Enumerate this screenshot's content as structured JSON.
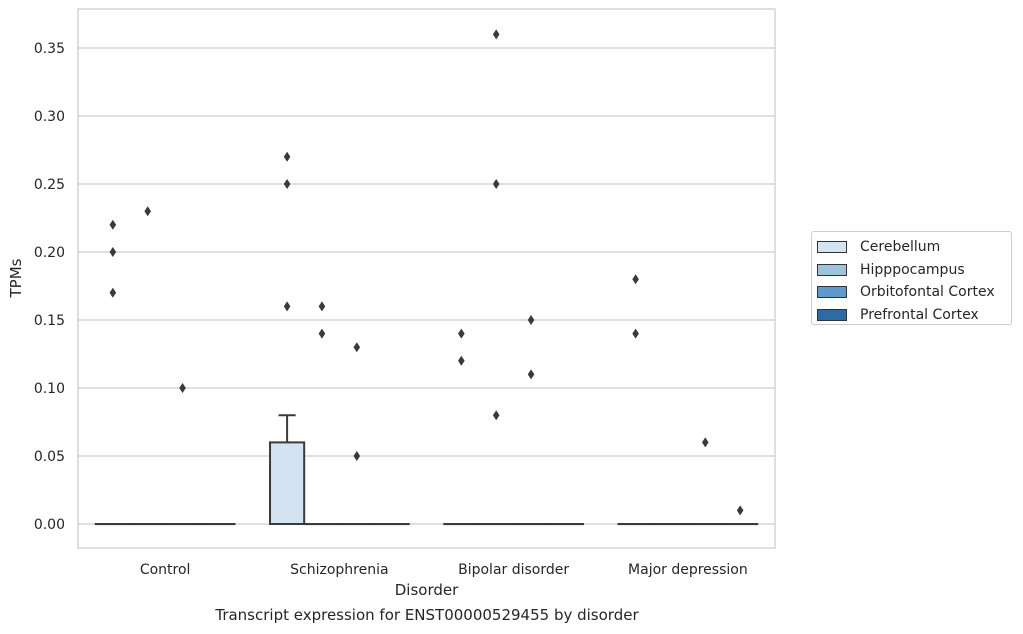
{
  "chart_data": {
    "type": "box",
    "xlabel": "Disorder",
    "ylabel": "TPMs",
    "ylim": [
      -0.018,
      0.378
    ],
    "yticks": [
      0.0,
      0.05,
      0.1,
      0.15,
      0.2,
      0.25,
      0.3,
      0.35
    ],
    "ytick_labels": [
      "0.00",
      "0.05",
      "0.10",
      "0.15",
      "0.20",
      "0.25",
      "0.30",
      "0.35"
    ],
    "grid": "horizontal",
    "legend_position": "right",
    "categories": [
      "Control",
      "Schizophrenia",
      "Bipolar disorder",
      "Major depression"
    ],
    "series": [
      {
        "name": "Cerebellum",
        "color": "#d3e3f2",
        "boxes": [
          {
            "q1": 0,
            "median": 0,
            "q3": 0,
            "whisker_low": 0,
            "whisker_high": 0,
            "outliers": [
              0.22,
              0.2,
              0.17
            ]
          },
          {
            "q1": 0,
            "median": 0,
            "q3": 0.06,
            "whisker_low": 0,
            "whisker_high": 0.08,
            "outliers": [
              0.27,
              0.25,
              0.16
            ]
          },
          {
            "q1": 0,
            "median": 0,
            "q3": 0,
            "whisker_low": 0,
            "whisker_high": 0,
            "outliers": [
              0.14,
              0.12
            ]
          },
          {
            "q1": 0,
            "median": 0,
            "q3": 0,
            "whisker_low": 0,
            "whisker_high": 0,
            "outliers": [
              0.18,
              0.14
            ]
          }
        ]
      },
      {
        "name": "Hipppocampus",
        "color": "#9cc4de",
        "boxes": [
          {
            "q1": 0,
            "median": 0,
            "q3": 0,
            "whisker_low": 0,
            "whisker_high": 0,
            "outliers": [
              0.23
            ]
          },
          {
            "q1": 0,
            "median": 0,
            "q3": 0,
            "whisker_low": 0,
            "whisker_high": 0,
            "outliers": [
              0.16,
              0.14
            ]
          },
          {
            "q1": 0,
            "median": 0,
            "q3": 0,
            "whisker_low": 0,
            "whisker_high": 0,
            "outliers": [
              0.36,
              0.25,
              0.08
            ]
          },
          {
            "q1": 0,
            "median": 0,
            "q3": 0,
            "whisker_low": 0,
            "whisker_high": 0,
            "outliers": []
          }
        ]
      },
      {
        "name": "Orbitofontal Cortex",
        "color": "#5a9bcb",
        "boxes": [
          {
            "q1": 0,
            "median": 0,
            "q3": 0,
            "whisker_low": 0,
            "whisker_high": 0,
            "outliers": [
              0.1
            ]
          },
          {
            "q1": 0,
            "median": 0,
            "q3": 0,
            "whisker_low": 0,
            "whisker_high": 0,
            "outliers": [
              0.13,
              0.05
            ]
          },
          {
            "q1": 0,
            "median": 0,
            "q3": 0,
            "whisker_low": 0,
            "whisker_high": 0,
            "outliers": [
              0.15,
              0.11
            ]
          },
          {
            "q1": 0,
            "median": 0,
            "q3": 0,
            "whisker_low": 0,
            "whisker_high": 0,
            "outliers": [
              0.06
            ]
          }
        ]
      },
      {
        "name": "Prefrontal Cortex",
        "color": "#2b6ca8",
        "boxes": [
          {
            "q1": 0,
            "median": 0,
            "q3": 0,
            "whisker_low": 0,
            "whisker_high": 0,
            "outliers": []
          },
          {
            "q1": 0,
            "median": 0,
            "q3": 0,
            "whisker_low": 0,
            "whisker_high": 0,
            "outliers": []
          },
          {
            "q1": 0,
            "median": 0,
            "q3": 0,
            "whisker_low": 0,
            "whisker_high": 0,
            "outliers": []
          },
          {
            "q1": 0,
            "median": 0,
            "q3": 0,
            "whisker_low": 0,
            "whisker_high": 0,
            "outliers": [
              0.01
            ]
          }
        ]
      }
    ]
  },
  "caption": "Transcript expression for ENST00000529455 by disorder"
}
